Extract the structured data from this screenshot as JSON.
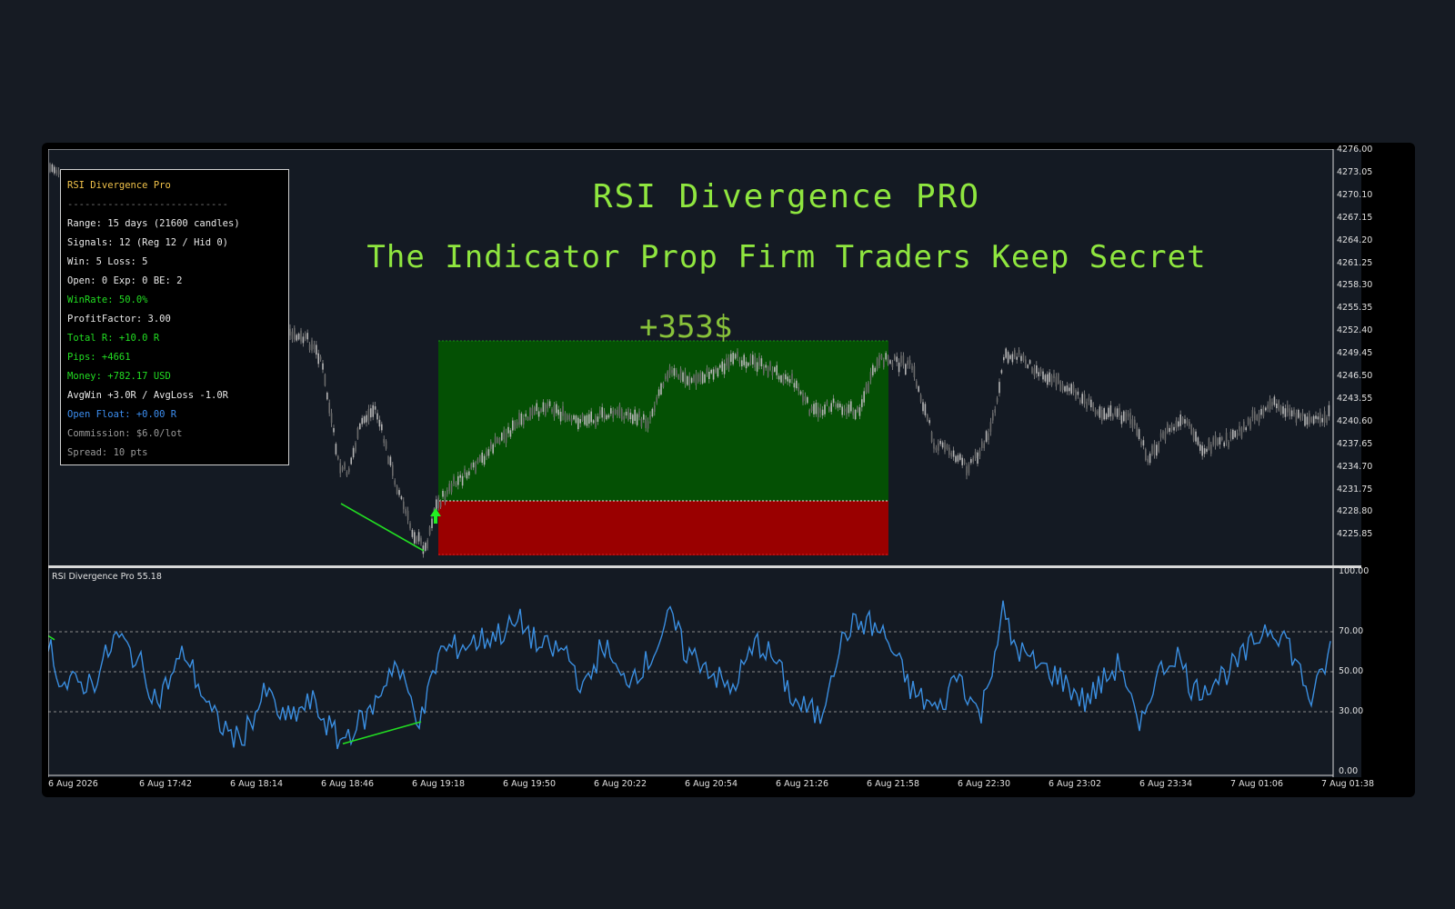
{
  "title": "RSI Divergence PRO",
  "subtitle": "The Indicator Prop Firm Traders Keep Secret",
  "trade": {
    "profit_label": "+353$",
    "direction": "buy"
  },
  "stats_panel": {
    "title": "RSI Divergence Pro",
    "separator": "----------------------------",
    "lines": [
      {
        "text": "Range: 15 days (21600 candles)",
        "color": "#e8e8e8"
      },
      {
        "text": "Signals: 12 (Reg 12 / Hid 0)",
        "color": "#e8e8e8"
      },
      {
        "text": "Win: 5    Loss: 5",
        "color": "#e8e8e8"
      },
      {
        "text": "Open: 0  Exp: 0  BE: 2",
        "color": "#e8e8e8"
      },
      {
        "text": "WinRate: 50.0%",
        "color": "#22dd22"
      },
      {
        "text": "ProfitFactor: 3.00",
        "color": "#e8e8e8"
      },
      {
        "text": "Total R: +10.0 R",
        "color": "#22dd22"
      },
      {
        "text": "Pips: +4661",
        "color": "#22dd22"
      },
      {
        "text": "Money: +782.17 USD",
        "color": "#22dd22"
      },
      {
        "text": "AvgWin +3.0R / AvgLoss -1.0R",
        "color": "#e8e8e8"
      },
      {
        "text": "Open Float: +0.00 R",
        "color": "#3c8ef0"
      },
      {
        "text": "Commission: $6.0/lot",
        "color": "#9a9a9a"
      },
      {
        "text": "Spread: 10 pts",
        "color": "#9a9a9a"
      }
    ]
  },
  "price_axis": [
    "4276.00",
    "4273.05",
    "4270.10",
    "4267.15",
    "4264.20",
    "4261.25",
    "4258.30",
    "4255.35",
    "4252.40",
    "4249.45",
    "4246.50",
    "4243.55",
    "4240.60",
    "4237.65",
    "4234.70",
    "4231.75",
    "4228.80",
    "4225.85"
  ],
  "rsi_panel": {
    "label": "RSI Divergence Pro 55.18",
    "axis": [
      "100.00",
      "70.00",
      "50.00",
      "30.00",
      "0.00"
    ],
    "levels": [
      70,
      50,
      30
    ]
  },
  "time_axis": [
    "6 Aug 2026",
    "6 Aug 17:42",
    "6 Aug 18:14",
    "6 Aug 18:46",
    "6 Aug 19:18",
    "6 Aug 19:50",
    "6 Aug 20:22",
    "6 Aug 20:54",
    "6 Aug 21:26",
    "6 Aug 21:58",
    "6 Aug 22:30",
    "6 Aug 23:02",
    "6 Aug 23:34",
    "7 Aug 01:06",
    "7 Aug 01:38"
  ],
  "colors": {
    "background": "#161b23",
    "chart_bg": "#141a23",
    "title": "#8fe63f",
    "take_profit_zone": "#045004",
    "stop_loss_zone": "#9a0000",
    "rsi_line": "#3a8ee0",
    "divergence_line": "#22dd22",
    "candles": "#8c8c8c"
  }
}
